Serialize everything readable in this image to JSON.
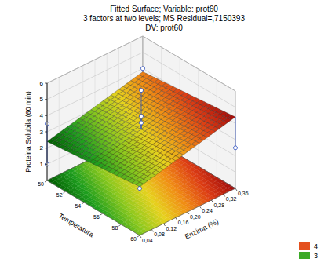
{
  "chart_data": {
    "type": "surface3d",
    "title": "Fitted Surface; Variable: prot60",
    "subtitle": [
      "3 factors at two levels; MS Residual=,7150393",
      "DV: prot60"
    ],
    "xlabel": "Temperatura",
    "ylabel": "Enzima (%)",
    "zlabel": "Proteina Solubila (60 min)",
    "xlim": [
      50,
      60
    ],
    "xticks": [
      50,
      52,
      54,
      56,
      58,
      60
    ],
    "ylim": [
      0.04,
      0.36
    ],
    "yticks": [
      {
        "value": 0.04,
        "label": "0,04"
      },
      {
        "value": 0.08,
        "label": "0,08"
      },
      {
        "value": 0.12,
        "label": "0,12"
      },
      {
        "value": 0.16,
        "label": "0,16"
      },
      {
        "value": 0.2,
        "label": "0,20"
      },
      {
        "value": 0.24,
        "label": "0,24"
      },
      {
        "value": 0.28,
        "label": "0,28"
      },
      {
        "value": 0.32,
        "label": "0,32"
      },
      {
        "value": 0.36,
        "label": "0,36"
      }
    ],
    "zlim": [
      0,
      6
    ],
    "zticks": [
      1,
      2,
      3,
      4,
      5,
      6
    ],
    "surface": {
      "temperatura": [
        50,
        60
      ],
      "enzima": [
        0.04,
        0.36
      ],
      "values": [
        [
          2.4,
          3.8
        ],
        [
          3.0,
          4.4
        ]
      ]
    },
    "points": {
      "temperatura": [
        50,
        50,
        60,
        55,
        55,
        55,
        50,
        60
      ],
      "enzima": [
        0.04,
        0.04,
        0.04,
        0.2,
        0.2,
        0.2,
        0.36,
        0.36
      ],
      "values": [
        3.5,
        1.0,
        2.9,
        5.8,
        4.2,
        3.8,
        4.0,
        2.5
      ]
    },
    "levels": [
      {
        "value": 4,
        "color": "#e4501e"
      },
      {
        "value": 3,
        "color": "#3caa28"
      }
    ],
    "legend": "bottom-right",
    "grid": true
  }
}
